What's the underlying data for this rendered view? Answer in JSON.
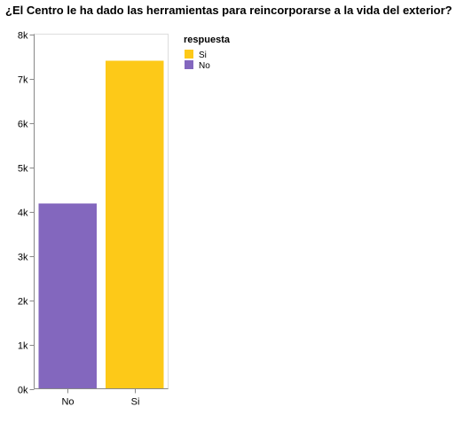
{
  "chart_data": {
    "type": "bar",
    "title": "¿El Centro le ha dado las herramientas para reincorporarse a la vida del exterior?",
    "xlabel": "",
    "ylabel": "",
    "categories": [
      "No",
      "Si"
    ],
    "values": [
      4180,
      7400
    ],
    "bar_colors": [
      "#8367be",
      "#fdc918"
    ],
    "ylim": [
      0,
      8000
    ],
    "yticks": [
      0,
      1000,
      2000,
      3000,
      4000,
      5000,
      6000,
      7000,
      8000
    ],
    "ytick_labels": [
      "0k",
      "1k",
      "2k",
      "3k",
      "4k",
      "5k",
      "6k",
      "7k",
      "8k"
    ],
    "grid": false,
    "legend": {
      "title": "respuesta",
      "placement": "right",
      "items": [
        {
          "label": "Si",
          "color": "#fdc918"
        },
        {
          "label": "No",
          "color": "#8367be"
        }
      ]
    }
  }
}
